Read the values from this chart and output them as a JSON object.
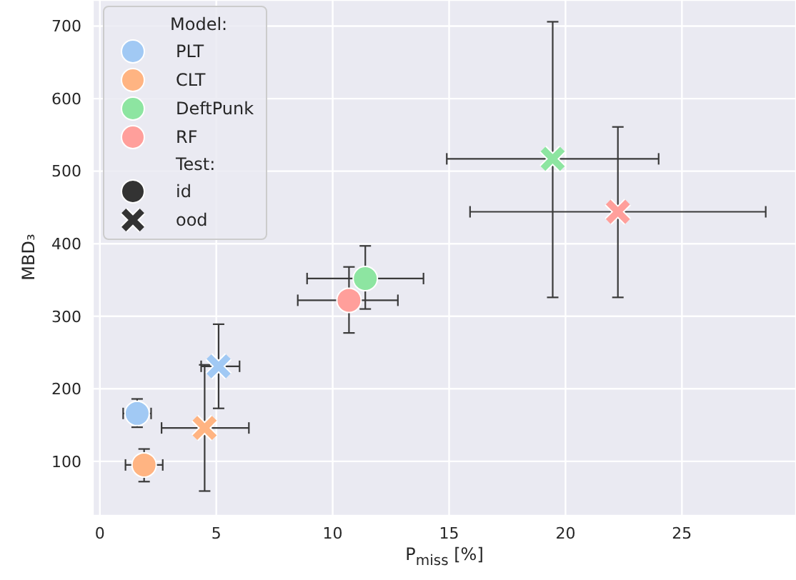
{
  "chart_data": {
    "type": "scatter",
    "xlabel": "P$_{miss}$ [%]",
    "ylabel": "MBD₃",
    "legend_title": "Model:",
    "legend": "top left",
    "grid": true,
    "xlim": [
      -0.3,
      29.9
    ],
    "ylim": [
      25,
      736
    ],
    "xticks": [
      0,
      5,
      10,
      15,
      20,
      25
    ],
    "yticks": [
      100,
      200,
      300,
      400,
      500,
      600,
      700
    ],
    "annotations": [
      "Test:",
      "id",
      "ood"
    ],
    "series": [
      {
        "name": "PLT",
        "color": "#a1c9f4",
        "marker": "circle",
        "x": [
          1.6
        ],
        "values": [
          166
        ],
        "xerrors": [
          [
            1.0,
            2.2
          ]
        ],
        "errors": [
          [
            147,
            186
          ]
        ]
      },
      {
        "name": "CLT",
        "color": "#ffb482",
        "marker": "circle",
        "x": [
          1.9
        ],
        "values": [
          95
        ],
        "xerrors": [
          [
            1.1,
            2.7
          ]
        ],
        "errors": [
          [
            72,
            117
          ]
        ]
      },
      {
        "name": "DeftPunk",
        "color": "#8de5a1",
        "marker": "circle",
        "x": [
          11.4
        ],
        "values": [
          352
        ],
        "xerrors": [
          [
            8.9,
            13.9
          ]
        ],
        "errors": [
          [
            310,
            397
          ]
        ]
      },
      {
        "name": "RF",
        "color": "#ff9f9b",
        "marker": "circle",
        "x": [
          10.7
        ],
        "values": [
          322
        ],
        "xerrors": [
          [
            8.5,
            12.8
          ]
        ],
        "errors": [
          [
            277,
            368
          ]
        ]
      },
      {
        "color": "#a1c9f4",
        "marker": "cross",
        "x": [
          5.1
        ],
        "values": [
          231
        ],
        "xerrors": [
          [
            4.35,
            6.0
          ]
        ],
        "errors": [
          [
            173,
            289
          ]
        ]
      },
      {
        "color": "#ffb482",
        "marker": "cross",
        "x": [
          4.5
        ],
        "values": [
          146
        ],
        "xerrors": [
          [
            2.65,
            6.4
          ]
        ],
        "errors": [
          [
            59,
            233
          ]
        ]
      },
      {
        "color": "#8de5a1",
        "marker": "cross",
        "x": [
          19.45
        ],
        "values": [
          517
        ],
        "xerrors": [
          [
            14.9,
            24.0
          ]
        ],
        "errors": [
          [
            326,
            706
          ]
        ]
      },
      {
        "color": "#ff9f9b",
        "marker": "cross",
        "x": [
          22.25
        ],
        "values": [
          444
        ],
        "xerrors": [
          [
            15.9,
            28.6
          ]
        ],
        "errors": [
          [
            326,
            561
          ]
        ]
      }
    ]
  }
}
